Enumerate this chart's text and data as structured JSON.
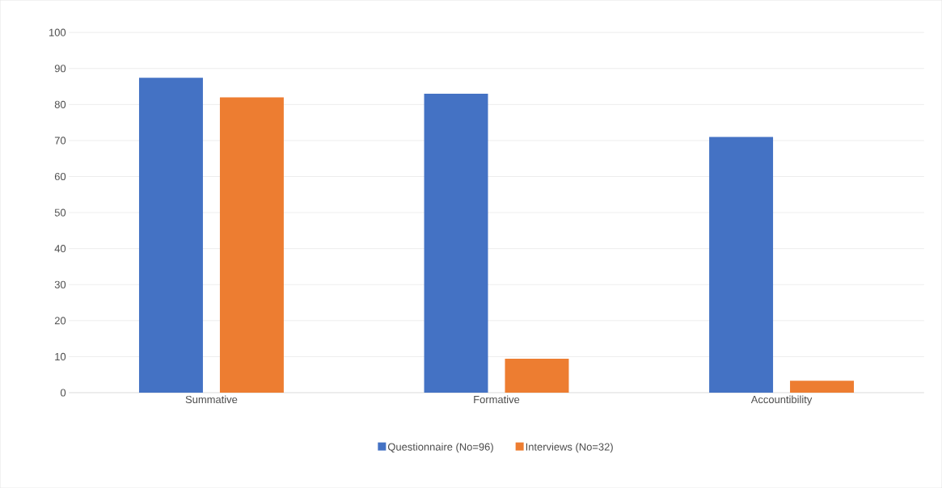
{
  "chart_data": {
    "type": "bar",
    "categories": [
      "Summative",
      "Formative",
      "Accountibility"
    ],
    "series": [
      {
        "name": "Questionnaire (No=96)",
        "color": "#4472c4",
        "values": [
          87.4,
          83,
          71
        ]
      },
      {
        "name": "Interviews (No=32)",
        "color": "#ed7d31",
        "values": [
          82,
          9.4,
          3.3
        ]
      }
    ],
    "ylim": [
      0,
      100
    ],
    "yticks": [
      0,
      10,
      20,
      30,
      40,
      50,
      60,
      70,
      80,
      90,
      100
    ],
    "grid": "y",
    "legend": "bottom"
  }
}
